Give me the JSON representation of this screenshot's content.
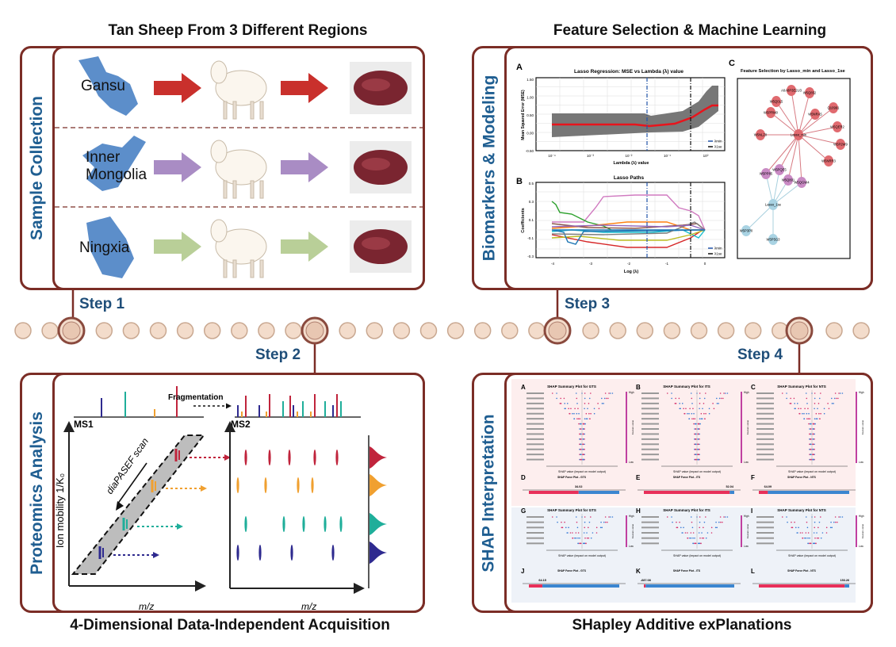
{
  "titles": {
    "top_left": "Tan Sheep From 3 Different Regions",
    "top_right": "Feature Selection & Machine Learning",
    "bottom_left": "4-Dimensional Data-Independent Acquisition",
    "bottom_right": "SHapley Additive exPlanations"
  },
  "panels": {
    "sample": "Sample Collection",
    "proteomics": "Proteomics Analysis",
    "biomarkers": "Biomarkers & Modeling",
    "shap": "SHAP Interpretation"
  },
  "steps": [
    "Step 1",
    "Step 2",
    "Step 3",
    "Step 4"
  ],
  "regions": [
    {
      "name": "Gansu",
      "color": "#c9302c"
    },
    {
      "name": "Inner\nMongolia",
      "color": "#a98cc4"
    },
    {
      "name": "Ningxia",
      "color": "#b9cf98"
    }
  ],
  "dia": {
    "ms1": "MS1",
    "ms2": "MS2",
    "fragmentation": "Fragmentation",
    "scan": "diaPASEF scan",
    "ylabel": "Ion mobility 1/K₀",
    "xlabel": "m/z",
    "ion_colors": [
      "#c0243c",
      "#f0a030",
      "#1fae9a",
      "#2e2a8f"
    ]
  },
  "lasso": {
    "a_letter": "A",
    "a_title": "Lasso Regression: MSE vs Lambda (λ) value",
    "a_ylabel": "Mean Squared Error (MSE)",
    "a_xlabel": "Lambda (λ) value",
    "a_yticks": [
      "1.50",
      "1.00",
      "0.50",
      "0.00",
      "-0.50"
    ],
    "a_xticks": [
      "10⁻⁴",
      "10⁻³",
      "10⁻²",
      "10⁻¹",
      "10⁰"
    ],
    "b_letter": "B",
    "b_title": "Lasso Paths",
    "b_ylabel": "Coefficients",
    "b_xlabel": "Log (λ)",
    "b_yticks": [
      "0.5",
      "0.3",
      "0.1",
      "-0.1",
      "-0.3"
    ],
    "b_xticks": [
      "-4",
      "-3",
      "-2",
      "-1",
      "0"
    ],
    "legend": [
      "λmin",
      "λ1se"
    ]
  },
  "network": {
    "letter": "C",
    "title": "Feature Selection by Lasso_min and Lasso_1se",
    "hub_min": "Lasso_min",
    "hub_1se": "Lasso_1se",
    "min_only": [
      "A0A8P3E2U3",
      "W5Q852",
      "W5Q0L5",
      "Q10991",
      "W5PRM0",
      "W5NRA5",
      "W5QER2",
      "W5NLZ0",
      "W5P2W9",
      "W5NRR3"
    ],
    "shared": [
      "W5PP85",
      "W5PQE5",
      "W5Q801",
      "W5QGW4"
    ],
    "se_only": [
      "W5P3P0",
      "W5P5G3"
    ]
  },
  "shap": {
    "rows": [
      [
        {
          "letter": "A",
          "title": "SHAP Summary Plot for GTS"
        },
        {
          "letter": "B",
          "title": "SHAP Summary Plot for ITS"
        },
        {
          "letter": "C",
          "title": "SHAP Summary Plot for NTS"
        }
      ],
      [
        {
          "letter": "D",
          "title": "SHAP Force Plot - GTS"
        },
        {
          "letter": "E",
          "title": "SHAP Force Plot - ITS"
        },
        {
          "letter": "F",
          "title": "SHAP Force Plot - NTS"
        }
      ],
      [
        {
          "letter": "G",
          "title": "SHAP Summary Plot for GTS"
        },
        {
          "letter": "H",
          "title": "SHAP Summary Plot for ITS"
        },
        {
          "letter": "I",
          "title": "SHAP Summary Plot for NTS"
        }
      ],
      [
        {
          "letter": "J",
          "title": "SHAP Force Plot - GTS"
        },
        {
          "letter": "K",
          "title": "SHAP Force Plot - ITS"
        },
        {
          "letter": "L",
          "title": "SHAP Force Plot - NTS"
        }
      ]
    ],
    "xlabel": "SHAP value (impact on model output)",
    "high": "High",
    "low": "Low",
    "feature_value": "Feature value",
    "force_values": [
      "34.02",
      "52.04",
      "64.09",
      "64.15",
      "-687.08",
      "153.26"
    ]
  }
}
